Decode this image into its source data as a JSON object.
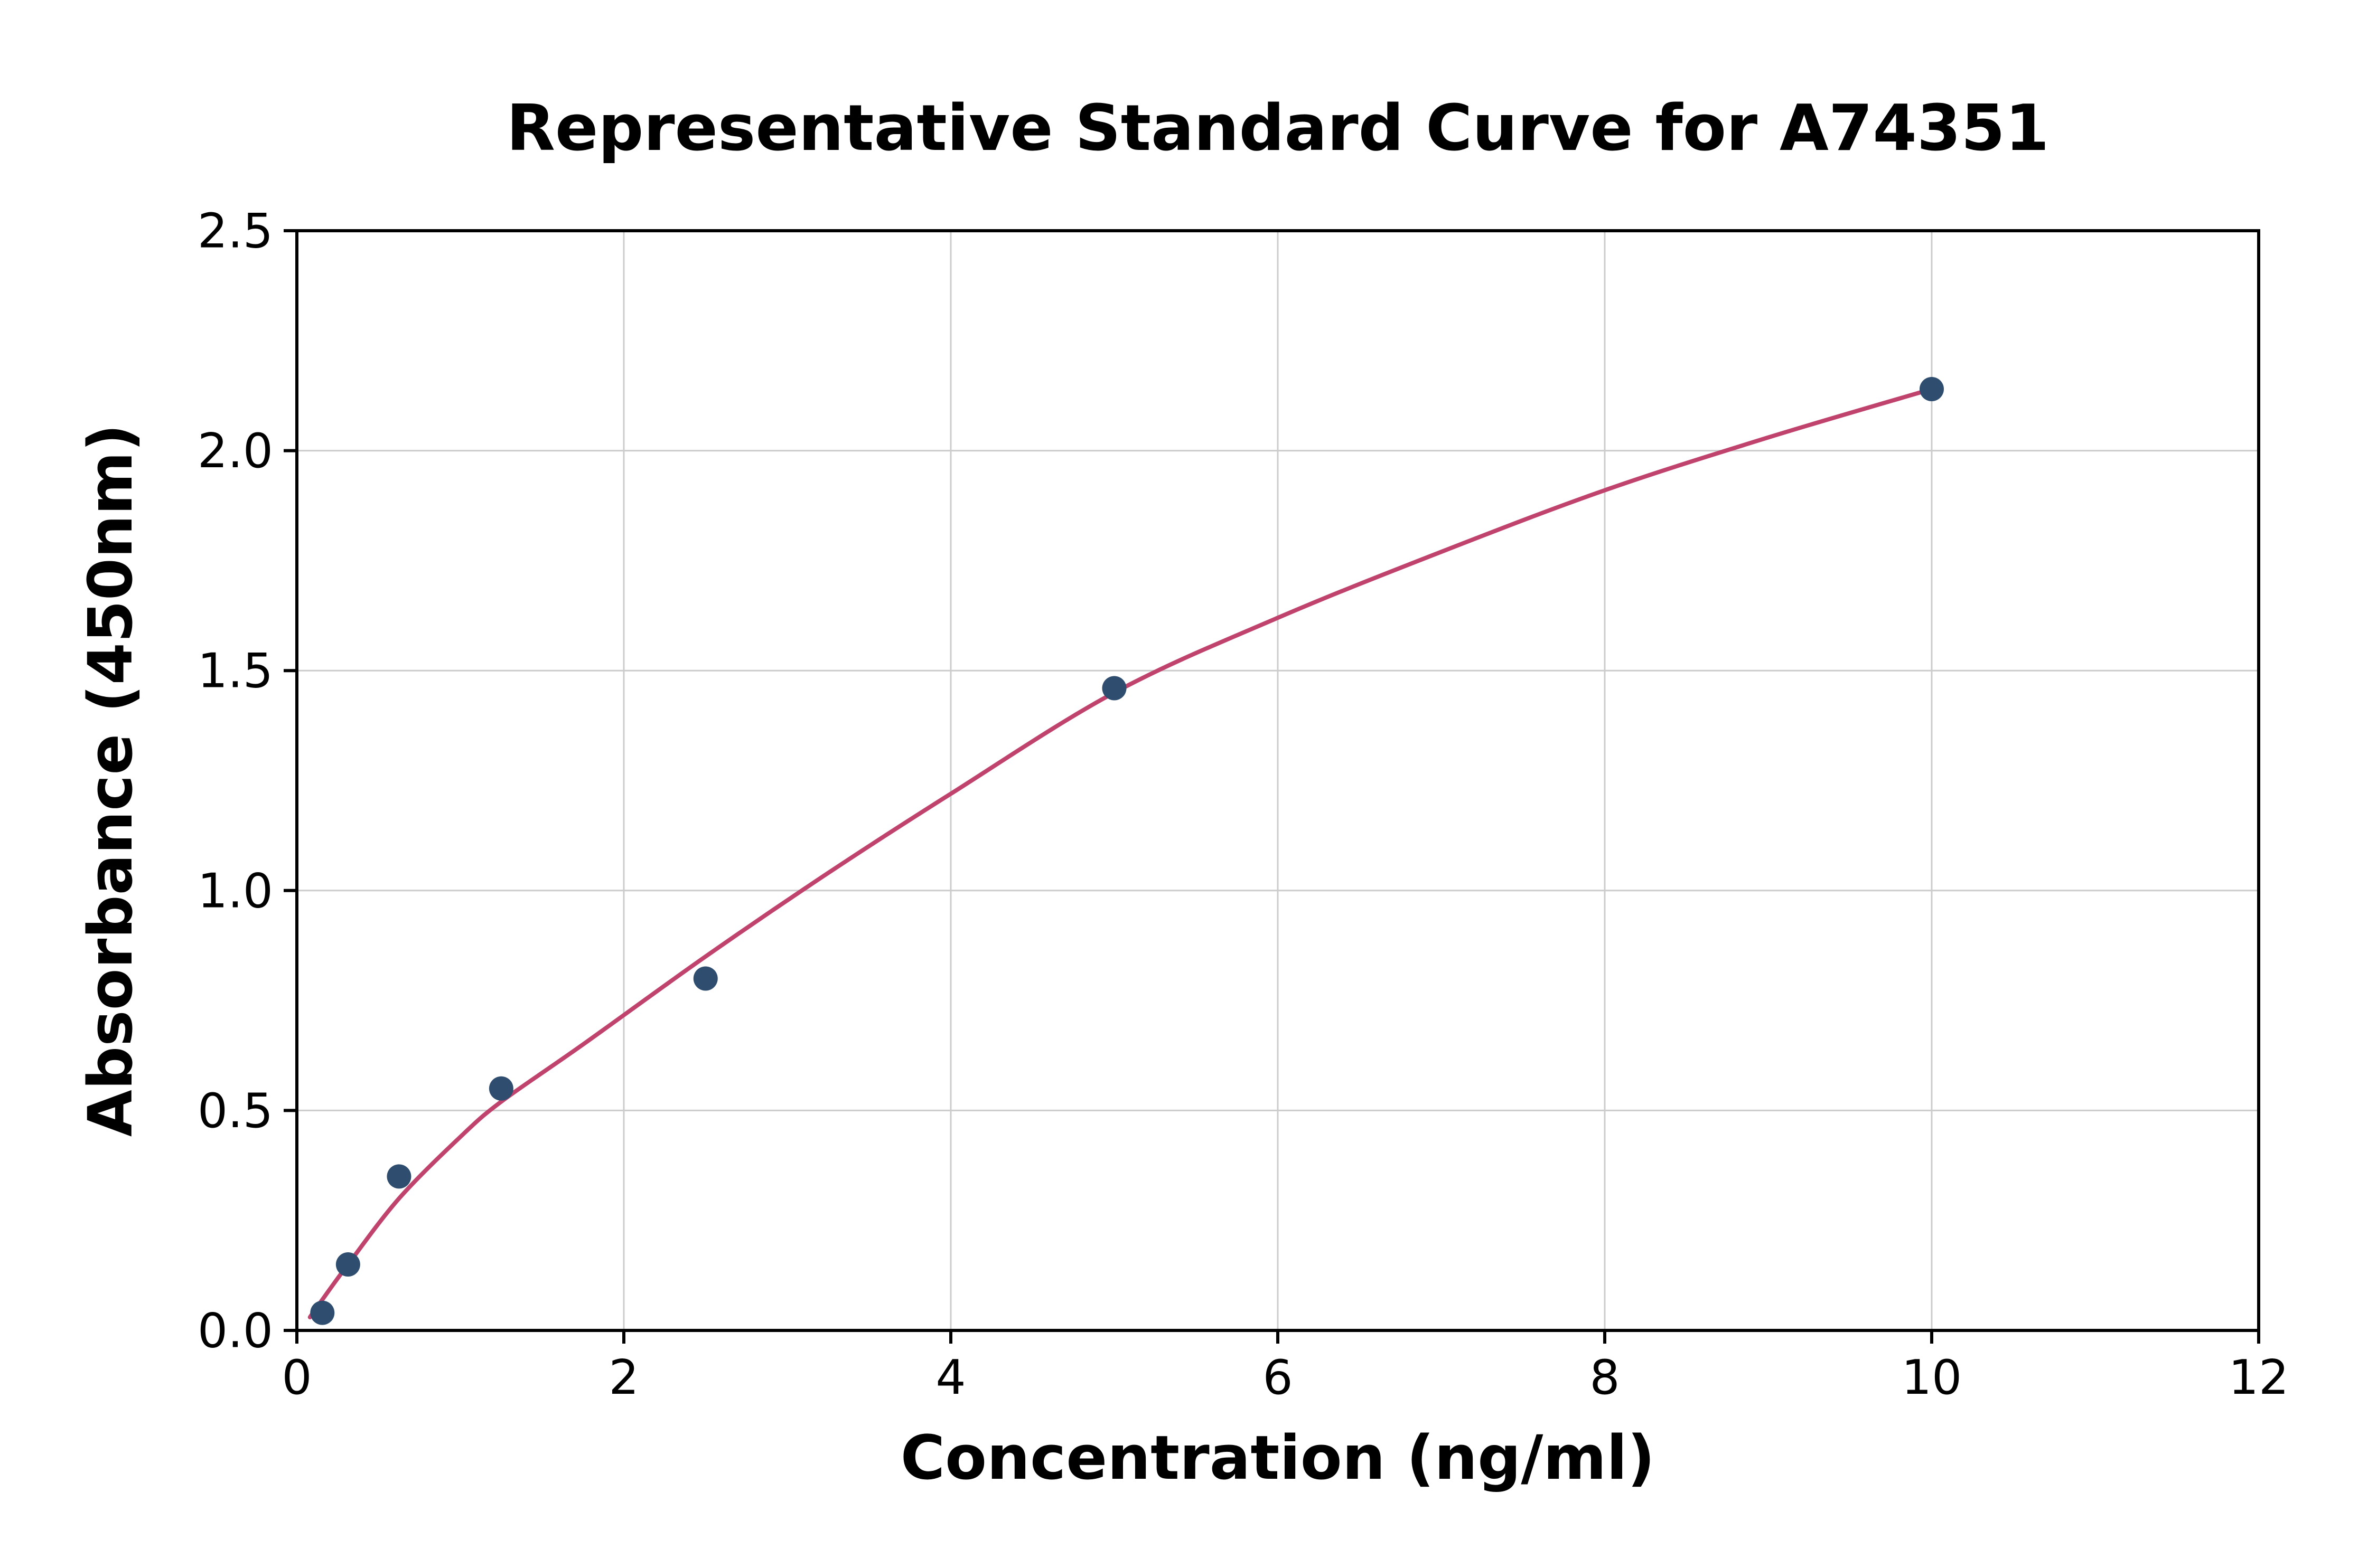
{
  "chart_data": {
    "type": "scatter",
    "title": "Representative Standard Curve for A74351",
    "xlabel": "Concentration (ng/ml)",
    "ylabel": "Absorbance (450nm)",
    "xlim": [
      0,
      12
    ],
    "ylim": [
      0,
      2.5
    ],
    "grid": true,
    "legend": "none",
    "x_ticks": {
      "values": [
        0,
        2,
        4,
        6,
        8,
        10,
        12
      ],
      "labels": [
        "0",
        "2",
        "4",
        "6",
        "8",
        "10",
        "12"
      ]
    },
    "y_ticks": {
      "values": [
        0,
        0.5,
        1,
        1.5,
        2,
        2.5
      ],
      "labels": [
        "0.0",
        "0.5",
        "1.0",
        "1.5",
        "2.0",
        "2.5"
      ]
    },
    "series": [
      {
        "name": "standard-points",
        "type": "scatter",
        "x": [
          0.156,
          0.313,
          0.625,
          1.25,
          2.5,
          5,
          10
        ],
        "y": [
          0.04,
          0.15,
          0.35,
          0.55,
          0.8,
          1.46,
          2.14
        ],
        "color": "#2f4d6e",
        "marker_radius": 23
      },
      {
        "name": "fit-curve",
        "type": "line",
        "x": [
          0.08,
          0.156,
          0.313,
          0.625,
          1.0,
          1.25,
          1.75,
          2.5,
          3.25,
          4.0,
          5.0,
          6.0,
          7.0,
          8.0,
          9.0,
          10.0
        ],
        "y": [
          0.03,
          0.07,
          0.15,
          0.3,
          0.44,
          0.52,
          0.65,
          0.85,
          1.04,
          1.22,
          1.45,
          1.62,
          1.77,
          1.91,
          2.03,
          2.14
        ],
        "color": "#c0436e",
        "line_width": 8
      }
    ],
    "colors": {
      "grid": "#cccccc",
      "axis": "#000000",
      "background": "#ffffff"
    }
  }
}
